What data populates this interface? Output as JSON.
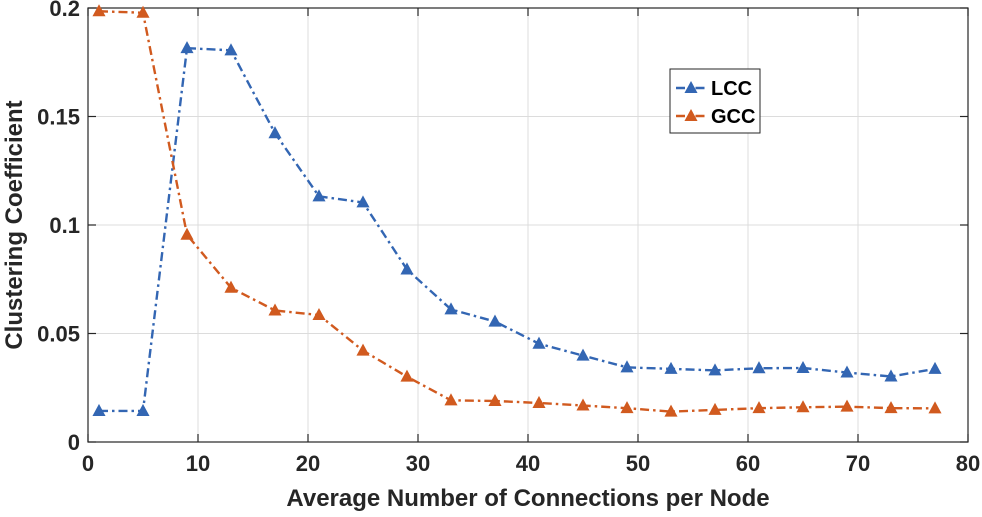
{
  "chart_data": {
    "type": "line",
    "title": "",
    "xlabel": "Average Number of Connections per Node",
    "ylabel": "Clustering Coefficient",
    "xlim": [
      0,
      80
    ],
    "ylim": [
      0,
      0.2
    ],
    "xticks": [
      0,
      10,
      20,
      30,
      40,
      50,
      60,
      70,
      80
    ],
    "yticks": [
      0,
      0.05,
      0.1,
      0.15,
      0.2
    ],
    "xtick_labels": [
      "0",
      "10",
      "20",
      "30",
      "40",
      "50",
      "60",
      "70",
      "80"
    ],
    "ytick_labels": [
      "0",
      "0.05",
      "0.1",
      "0.15",
      "0.2"
    ],
    "grid": true,
    "legend_position": "top-right",
    "marker": "triangle",
    "line_style": "dash-dot",
    "x": [
      1,
      5,
      9,
      13,
      17,
      21,
      25,
      29,
      33,
      37,
      41,
      45,
      49,
      53,
      57,
      61,
      65,
      69,
      73,
      77
    ],
    "series": [
      {
        "name": "LCC",
        "color": "#3366b3",
        "values": [
          0.0143,
          0.0143,
          0.1815,
          0.1805,
          0.1423,
          0.1132,
          0.1104,
          0.0795,
          0.0611,
          0.0555,
          0.0453,
          0.0398,
          0.0344,
          0.0337,
          0.033,
          0.034,
          0.0341,
          0.032,
          0.0302,
          0.0337
        ]
      },
      {
        "name": "GCC",
        "color": "#d15a1f",
        "values": [
          0.1985,
          0.1978,
          0.0955,
          0.0711,
          0.0606,
          0.0585,
          0.0421,
          0.0301,
          0.0192,
          0.0189,
          0.018,
          0.0168,
          0.0156,
          0.014,
          0.0148,
          0.0156,
          0.016,
          0.0163,
          0.0156,
          0.0155
        ]
      }
    ]
  }
}
